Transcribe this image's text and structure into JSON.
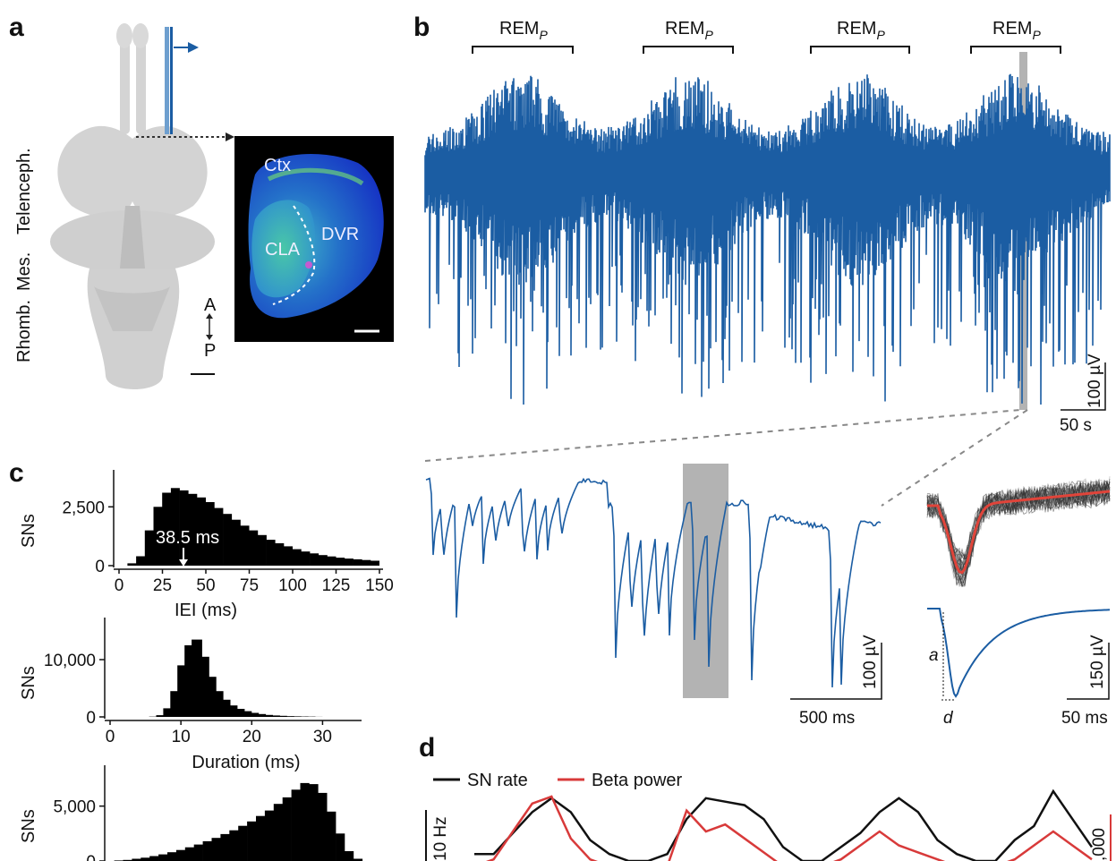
{
  "panels": {
    "a": {
      "label": "a",
      "regions": [
        "Rhomb.",
        "Mes.",
        "Telenceph."
      ],
      "inset_labels": [
        "Ctx",
        "CLA",
        "DVR"
      ],
      "orientation": {
        "anterior": "A",
        "posterior": "P"
      }
    },
    "b": {
      "label": "b",
      "rem_label_main": "REM",
      "rem_label_sub": "P",
      "rem_count": 4,
      "scale_top": {
        "v": "100 µV",
        "t": "50 s"
      },
      "scale_mid": {
        "v": "100 µV",
        "t": "500 ms"
      },
      "scale_wave": {
        "v": "150 µV",
        "t": "50 ms"
      },
      "wave_labels": [
        "a",
        "d"
      ]
    },
    "c": {
      "label": "c"
    },
    "d": {
      "label": "d",
      "legend": [
        "SN rate",
        "Beta power"
      ],
      "ylabel_left": "10 Hz",
      "ylabel_right": ",000"
    }
  },
  "colors": {
    "trace": "#1b5da3",
    "beta": "#d83a3a",
    "histogram": "#000000",
    "highlight": "#b3b3b3",
    "inset_bg": "#000000"
  },
  "chart_data": [
    {
      "type": "bar",
      "panel": "c-top",
      "xlabel": "IEI (ms)",
      "ylabel": "SNs",
      "xlim": [
        0,
        150
      ],
      "ylim": [
        0,
        3500
      ],
      "xticks": [
        0,
        25,
        50,
        75,
        100,
        125,
        150
      ],
      "yticks": [
        0,
        2500
      ],
      "ytick_labels": [
        "0",
        "2,500"
      ],
      "annotation": "38.5 ms",
      "annotation_x": 38.5,
      "x": [
        5,
        10,
        15,
        20,
        25,
        30,
        35,
        40,
        45,
        50,
        55,
        60,
        65,
        70,
        75,
        80,
        85,
        90,
        95,
        100,
        105,
        110,
        115,
        120,
        125,
        130,
        135,
        140,
        145,
        150
      ],
      "values": [
        0,
        100,
        400,
        1500,
        2500,
        3100,
        3300,
        3200,
        3050,
        2900,
        2700,
        2450,
        2200,
        1950,
        1700,
        1500,
        1300,
        1100,
        950,
        820,
        700,
        600,
        520,
        450,
        390,
        340,
        300,
        270,
        240,
        210
      ]
    },
    {
      "type": "bar",
      "panel": "c-middle",
      "xlabel": "Duration (ms)",
      "ylabel": "SNs",
      "xlim": [
        0,
        35
      ],
      "ylim": [
        0,
        15000
      ],
      "xticks": [
        0,
        10,
        20,
        30
      ],
      "yticks": [
        0,
        10000
      ],
      "ytick_labels": [
        "0",
        "10,000"
      ],
      "x": [
        7,
        8,
        9,
        10,
        11,
        12,
        13,
        14,
        15,
        16,
        17,
        18,
        19,
        20,
        21,
        22,
        23,
        24,
        25,
        26,
        27,
        28,
        29,
        30
      ],
      "values": [
        50,
        300,
        1500,
        4500,
        9000,
        12500,
        13500,
        10500,
        7000,
        4500,
        3000,
        2000,
        1400,
        1000,
        700,
        500,
        350,
        250,
        180,
        130,
        90,
        60,
        40,
        20
      ]
    },
    {
      "type": "bar",
      "panel": "c-bottom",
      "ylabel": "SNs",
      "ylim": [
        0,
        7500
      ],
      "yticks": [
        0,
        5000
      ],
      "ytick_labels": [
        "0",
        "5,000"
      ],
      "values": [
        0,
        50,
        100,
        200,
        300,
        450,
        600,
        800,
        1000,
        1250,
        1500,
        1800,
        2100,
        2450,
        2800,
        3200,
        3600,
        4100,
        4600,
        5200,
        5800,
        6500,
        7100,
        7000,
        6200,
        4500,
        2500,
        900,
        200,
        0
      ]
    },
    {
      "type": "line",
      "panel": "d",
      "series": [
        {
          "name": "SN rate",
          "values": [
            0.1,
            0.1,
            0.4,
            0.7,
            0.9,
            0.7,
            0.3,
            0.1,
            0.0,
            0.0,
            0.1,
            0.6,
            0.9,
            0.85,
            0.8,
            0.6,
            0.2,
            0.0,
            0.0,
            0.2,
            0.4,
            0.7,
            0.9,
            0.7,
            0.3,
            0.1,
            0.0,
            0.0,
            0.3,
            0.5,
            1.0,
            0.6,
            0.2
          ]
        },
        {
          "name": "Beta power",
          "values": [
            0.0,
            0.1,
            0.5,
            0.9,
            1.0,
            0.4,
            0.1,
            0.0,
            0.0,
            0.0,
            0.0,
            0.8,
            0.5,
            0.6,
            0.4,
            0.2,
            0.0,
            0.0,
            0.0,
            0.1,
            0.3,
            0.5,
            0.3,
            0.2,
            0.1,
            0.0,
            0.0,
            0.0,
            0.1,
            0.3,
            0.5,
            0.3,
            0.1
          ]
        }
      ]
    }
  ]
}
